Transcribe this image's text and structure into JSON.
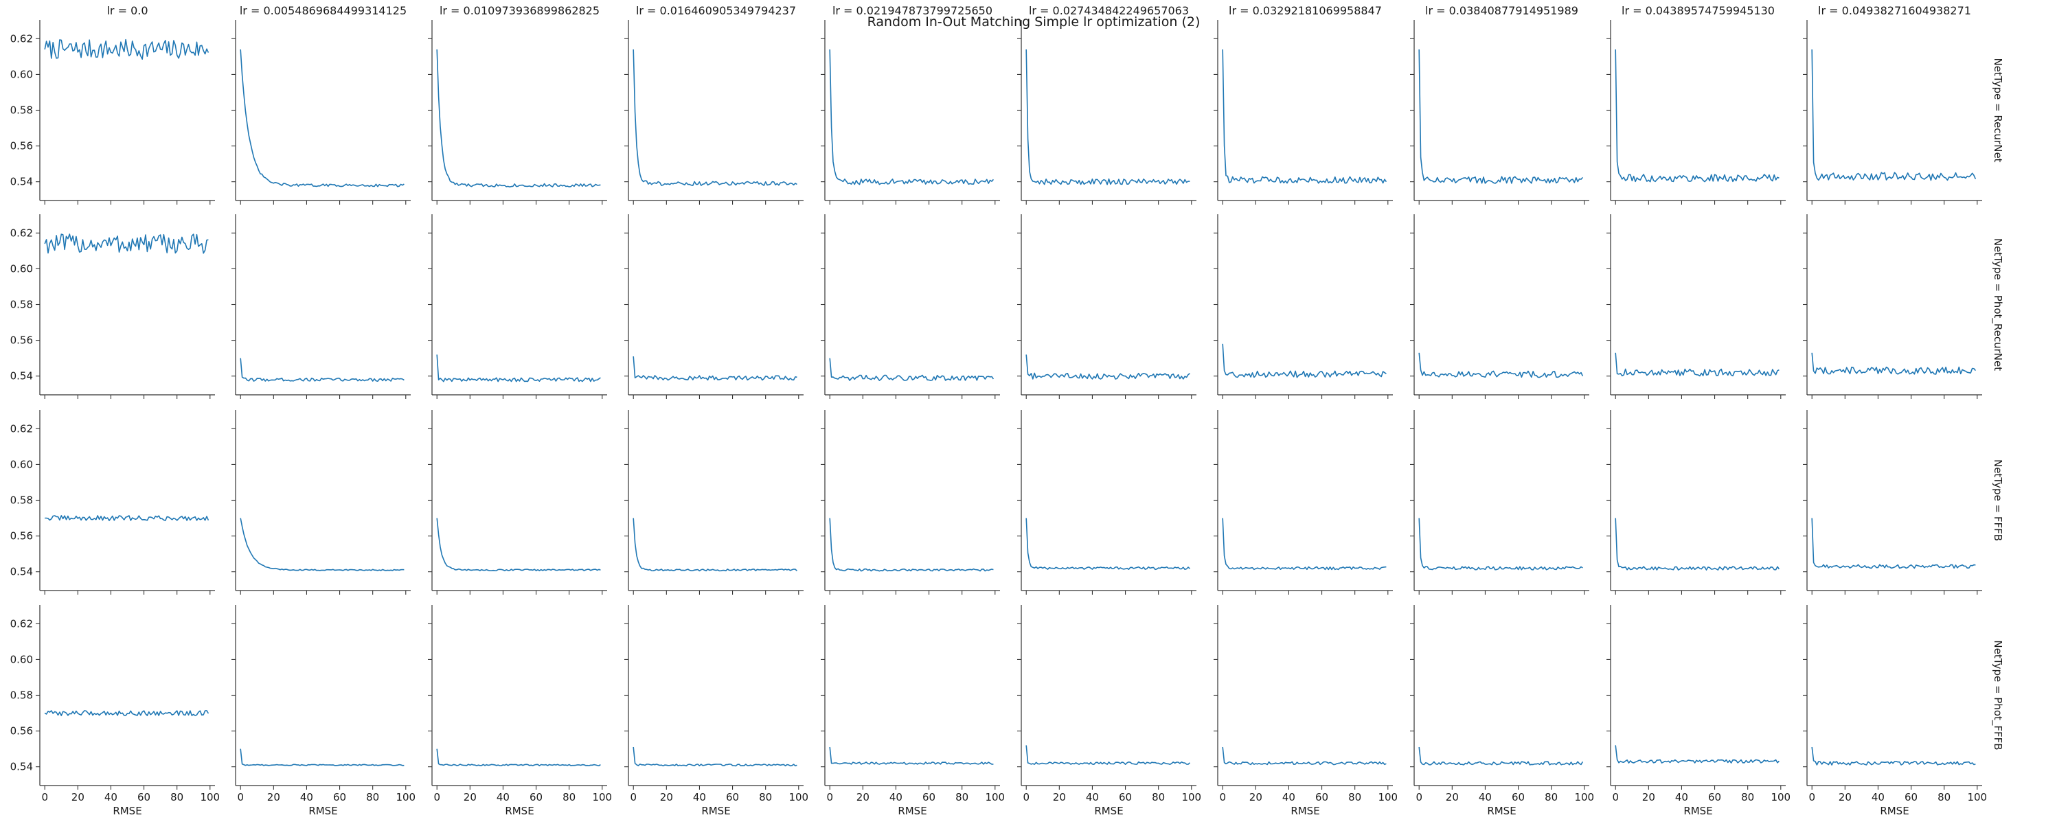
{
  "chart_data": {
    "type": "line",
    "title": "Random In-Out Matching Simple lr optimization (2)",
    "xlabel": "RMSE",
    "ylabel": "",
    "xlim": [
      -3,
      103
    ],
    "ylim": [
      0.5295,
      0.6305
    ],
    "x_ticks": [
      "0",
      "20",
      "40",
      "60",
      "80",
      "100"
    ],
    "y_ticks": [
      "0.54",
      "0.56",
      "0.58",
      "0.60",
      "0.62"
    ],
    "x_tick_values": [
      0,
      20,
      40,
      60,
      80,
      100
    ],
    "y_tick_values": [
      0.54,
      0.56,
      0.58,
      0.6,
      0.62
    ],
    "grid": false,
    "legend": "none",
    "line_color": "#1f77b4",
    "n_points": 100,
    "col_labels": [
      "lr = 0.0",
      "lr = 0.005486968449931412​5",
      "lr = 0.010973936899862825",
      "lr = 0.016460905349794237",
      "lr = 0.021947873799725650",
      "lr = 0.027434842249657063",
      "lr = 0.03292181069958847",
      "lr = 0.03840877914951989",
      "lr = 0.04389574759945130",
      "lr = 0.04938271604938271"
    ],
    "row_labels": [
      "NetType = RecurNet",
      "NetType = Phot_RecurNet",
      "NetType = FFFB",
      "NetType = Phot_FFFB"
    ],
    "panels": [
      [
        {
          "start": 0.614,
          "plateau": 0.614,
          "tau": 1,
          "noise": 0.0055
        },
        {
          "start": 0.614,
          "plateau": 0.538,
          "tau": 5.0,
          "noise": 0.0007
        },
        {
          "start": 0.614,
          "plateau": 0.538,
          "tau": 2.4,
          "noise": 0.0009
        },
        {
          "start": 0.614,
          "plateau": 0.539,
          "tau": 1.6,
          "noise": 0.0011
        },
        {
          "start": 0.614,
          "plateau": 0.54,
          "tau": 1.1,
          "noise": 0.0015
        },
        {
          "start": 0.614,
          "plateau": 0.54,
          "tau": 0.85,
          "noise": 0.0016
        },
        {
          "start": 0.614,
          "plateau": 0.541,
          "tau": 0.7,
          "noise": 0.0018
        },
        {
          "start": 0.614,
          "plateau": 0.541,
          "tau": 0.6,
          "noise": 0.0019
        },
        {
          "start": 0.614,
          "plateau": 0.542,
          "tau": 0.5,
          "noise": 0.0021
        },
        {
          "start": 0.614,
          "plateau": 0.543,
          "tau": 0.45,
          "noise": 0.0022
        }
      ],
      [
        {
          "start": 0.614,
          "plateau": 0.614,
          "tau": 1,
          "noise": 0.0055
        },
        {
          "start": 0.55,
          "plateau": 0.538,
          "tau": 0.35,
          "noise": 0.0009
        },
        {
          "start": 0.552,
          "plateau": 0.538,
          "tau": 0.35,
          "noise": 0.0011
        },
        {
          "start": 0.551,
          "plateau": 0.539,
          "tau": 0.35,
          "noise": 0.0013
        },
        {
          "start": 0.55,
          "plateau": 0.539,
          "tau": 0.35,
          "noise": 0.0015
        },
        {
          "start": 0.552,
          "plateau": 0.54,
          "tau": 0.35,
          "noise": 0.0017
        },
        {
          "start": 0.558,
          "plateau": 0.541,
          "tau": 0.35,
          "noise": 0.0018
        },
        {
          "start": 0.553,
          "plateau": 0.541,
          "tau": 0.35,
          "noise": 0.0018
        },
        {
          "start": 0.553,
          "plateau": 0.542,
          "tau": 0.35,
          "noise": 0.0019
        },
        {
          "start": 0.553,
          "plateau": 0.543,
          "tau": 0.35,
          "noise": 0.0021
        }
      ],
      [
        {
          "start": 0.57,
          "plateau": 0.57,
          "tau": 1,
          "noise": 0.0014
        },
        {
          "start": 0.57,
          "plateau": 0.541,
          "tau": 5.5,
          "noise": 0.0003
        },
        {
          "start": 0.57,
          "plateau": 0.541,
          "tau": 2.5,
          "noise": 0.0004
        },
        {
          "start": 0.57,
          "plateau": 0.541,
          "tau": 1.6,
          "noise": 0.0005
        },
        {
          "start": 0.57,
          "plateau": 0.541,
          "tau": 1.1,
          "noise": 0.0006
        },
        {
          "start": 0.57,
          "plateau": 0.542,
          "tau": 0.85,
          "noise": 0.0007
        },
        {
          "start": 0.57,
          "plateau": 0.542,
          "tau": 0.7,
          "noise": 0.0008
        },
        {
          "start": 0.57,
          "plateau": 0.542,
          "tau": 0.6,
          "noise": 0.0009
        },
        {
          "start": 0.57,
          "plateau": 0.542,
          "tau": 0.5,
          "noise": 0.001
        },
        {
          "start": 0.57,
          "plateau": 0.543,
          "tau": 0.45,
          "noise": 0.001
        }
      ],
      [
        {
          "start": 0.57,
          "plateau": 0.57,
          "tau": 1,
          "noise": 0.0014
        },
        {
          "start": 0.55,
          "plateau": 0.541,
          "tau": 0.35,
          "noise": 0.0003
        },
        {
          "start": 0.55,
          "plateau": 0.541,
          "tau": 0.35,
          "noise": 0.0004
        },
        {
          "start": 0.551,
          "plateau": 0.541,
          "tau": 0.35,
          "noise": 0.0005
        },
        {
          "start": 0.551,
          "plateau": 0.542,
          "tau": 0.35,
          "noise": 0.0006
        },
        {
          "start": 0.552,
          "plateau": 0.542,
          "tau": 0.35,
          "noise": 0.0007
        },
        {
          "start": 0.551,
          "plateau": 0.542,
          "tau": 0.35,
          "noise": 0.0008
        },
        {
          "start": 0.551,
          "plateau": 0.542,
          "tau": 0.35,
          "noise": 0.0009
        },
        {
          "start": 0.552,
          "plateau": 0.543,
          "tau": 0.35,
          "noise": 0.0009
        },
        {
          "start": 0.551,
          "plateau": 0.542,
          "tau": 0.35,
          "noise": 0.001
        }
      ]
    ]
  }
}
